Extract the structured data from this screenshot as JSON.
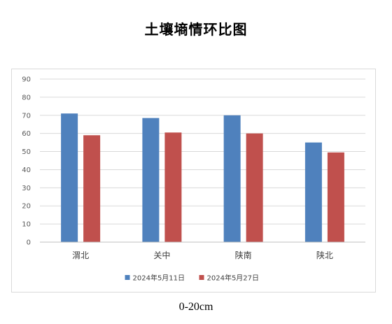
{
  "page": {
    "title": "土壤墒情环比图",
    "caption": "0-20cm"
  },
  "chart_data": {
    "type": "bar",
    "title": "",
    "xlabel": "",
    "ylabel": "",
    "categories": [
      "渭北",
      "关中",
      "陕南",
      "陕北"
    ],
    "series": [
      {
        "name": "2024年5月11日",
        "color": "#4f81bd",
        "values": [
          71,
          68.5,
          70,
          55
        ]
      },
      {
        "name": "2024年5月27日",
        "color": "#c0504d",
        "values": [
          59,
          60.5,
          60,
          49.5
        ]
      }
    ],
    "ylim": [
      0,
      90
    ],
    "yticks": [
      "0",
      "10",
      "20",
      "30",
      "40",
      "50",
      "60",
      "70",
      "80",
      "90"
    ],
    "grid": true,
    "legend_position": "bottom"
  }
}
